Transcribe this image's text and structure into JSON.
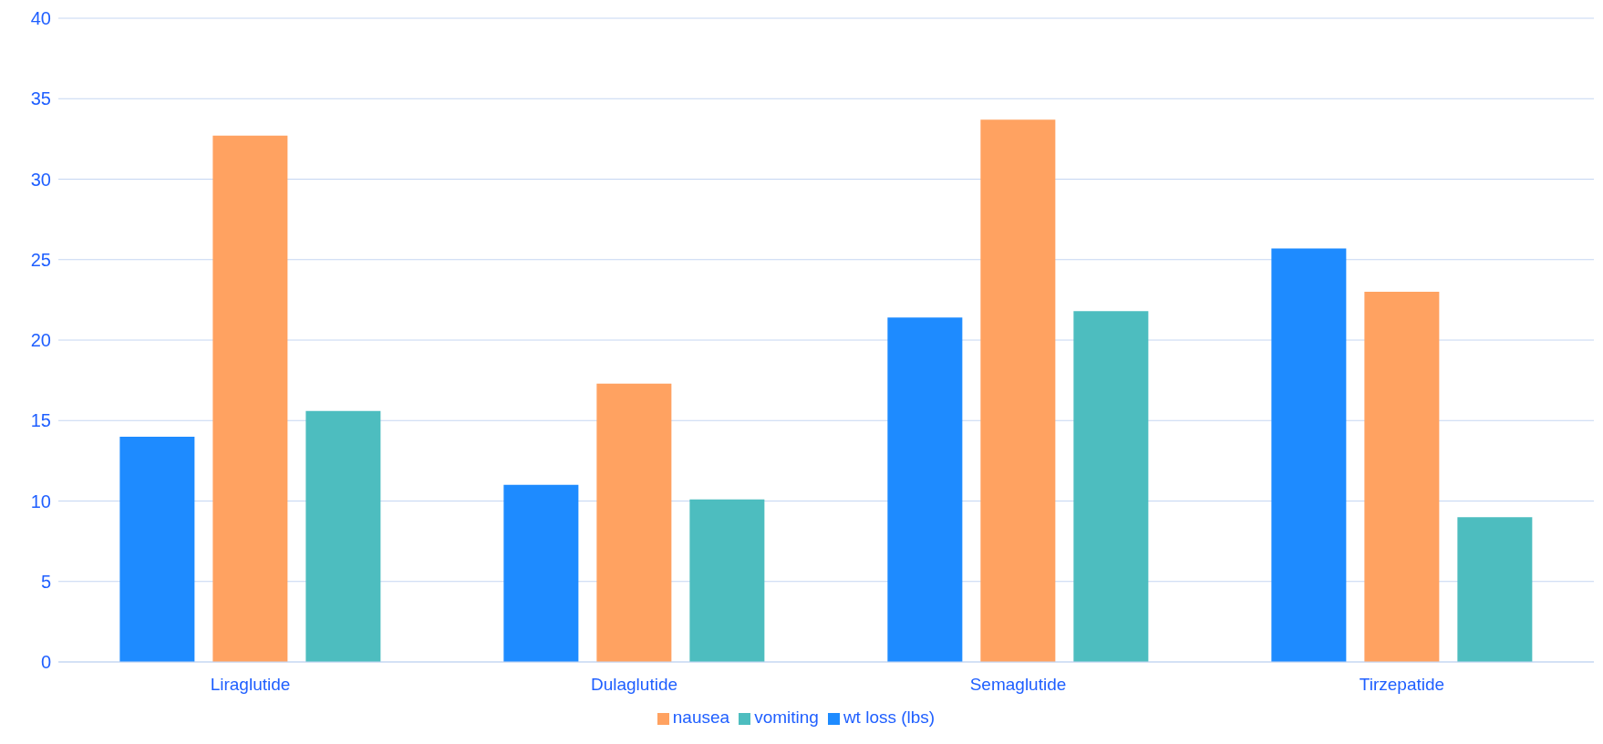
{
  "chart_data": {
    "type": "bar",
    "categories": [
      "Liraglutide",
      "Dulaglutide",
      "Semaglutide",
      "Tirzepatide"
    ],
    "series": [
      {
        "name": "wt loss (lbs)",
        "color": "#1e8bff",
        "values": [
          14,
          11,
          21.4,
          25.7
        ]
      },
      {
        "name": "nausea",
        "color": "#ffa261",
        "values": [
          32.7,
          17.3,
          33.7,
          23
        ]
      },
      {
        "name": "vomiting",
        "color": "#4dbdbf",
        "values": [
          15.6,
          10.1,
          21.8,
          9
        ]
      }
    ],
    "ylim": [
      0,
      40
    ],
    "yticks": [
      0,
      5,
      10,
      15,
      20,
      25,
      30,
      35,
      40
    ],
    "grid": "y",
    "legend": "bottom"
  }
}
